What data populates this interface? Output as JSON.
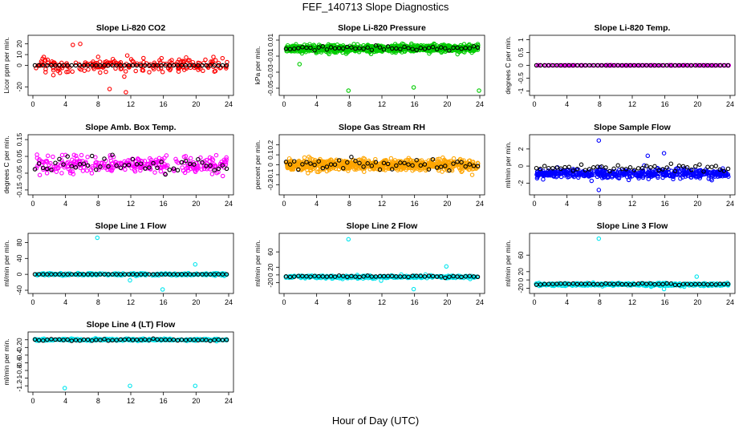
{
  "figure": {
    "title": "FEF_140713  Slope Diagnostics",
    "xlabel": "Hour of Day (UTC)"
  },
  "chart_data": [
    {
      "type": "scatter",
      "title": "Slope Li-820 CO2",
      "ylabel": "Licor ppm per min.",
      "xlim": [
        0,
        24
      ],
      "ylim": [
        -25,
        25
      ],
      "yticks": [
        -20,
        0,
        10,
        20
      ],
      "xticks": [
        0,
        4,
        8,
        12,
        16,
        20,
        24
      ],
      "color": "#ff0000",
      "series": [
        {
          "kind": "noise",
          "count": 220,
          "xrange": [
            0.3,
            23.8
          ],
          "center": 0,
          "spread": 8,
          "outliers": [
            [
              4.9,
              19
            ],
            [
              5.8,
              20
            ],
            [
              9.4,
              -22
            ],
            [
              11.4,
              -25
            ]
          ]
        },
        {
          "kind": "reference",
          "count": 48,
          "value": 0
        }
      ]
    },
    {
      "type": "scatter",
      "title": "Slope Li-820 Pressure",
      "ylabel": "kPa per min.",
      "xlim": [
        0,
        24
      ],
      "ylim": [
        -0.055,
        0.012
      ],
      "yticks": [
        -0.05,
        -0.03,
        -0.01,
        0.01
      ],
      "xticks": [
        0,
        4,
        8,
        12,
        16,
        20,
        24
      ],
      "color": "#00cc00",
      "series": [
        {
          "kind": "noise",
          "count": 900,
          "xrange": [
            0.3,
            23.8
          ],
          "center": -0.0005,
          "spread": 0.005,
          "outliers": [
            [
              7.9,
              -0.053
            ],
            [
              15.9,
              -0.049
            ],
            [
              23.9,
              -0.053
            ],
            [
              1.9,
              -0.02
            ]
          ]
        },
        {
          "kind": "reference",
          "count": 48,
          "value": 0.0,
          "spread": 0.003
        }
      ]
    },
    {
      "type": "scatter",
      "title": "Slope Li-820 Temp.",
      "ylabel": "degrees C per min.",
      "xlim": [
        0,
        24
      ],
      "ylim": [
        -1.05,
        1.05
      ],
      "yticks": [
        -1.0,
        -0.5,
        0.0,
        0.5,
        1.0
      ],
      "xticks": [
        0,
        4,
        8,
        12,
        16,
        20,
        24
      ],
      "color": "#ff00ff",
      "series": [
        {
          "kind": "noise",
          "count": 150,
          "xrange": [
            0.2,
            23.9
          ],
          "center": 0,
          "spread": 0.004,
          "outliers": []
        },
        {
          "kind": "reference",
          "count": 48,
          "value": 0
        }
      ]
    },
    {
      "type": "scatter",
      "title": "Slope Amb. Box Temp.",
      "ylabel": "degrees C per min.",
      "xlim": [
        0,
        24
      ],
      "ylim": [
        -0.16,
        0.16
      ],
      "yticks": [
        -0.15,
        -0.05,
        0.05,
        0.15
      ],
      "xticks": [
        0,
        4,
        8,
        12,
        16,
        20,
        24
      ],
      "color": "#ff00ff",
      "series": [
        {
          "kind": "noise",
          "count": 300,
          "xrange": [
            0.3,
            23.8
          ],
          "center": 0.0,
          "spread": 0.055,
          "outliers": []
        },
        {
          "kind": "reference",
          "count": 48,
          "value": 0.0,
          "spread": 0.045
        }
      ]
    },
    {
      "type": "scatter",
      "title": "Slope Gas Stream RH",
      "ylabel": "percent per min.",
      "xlim": [
        0,
        24
      ],
      "ylim": [
        -0.27,
        0.27
      ],
      "yticks": [
        -0.2,
        -0.1,
        0.0,
        0.1,
        0.2
      ],
      "xticks": [
        0,
        4,
        8,
        12,
        16,
        20,
        24
      ],
      "color": "#ffa500",
      "series": [
        {
          "kind": "noise",
          "count": 700,
          "xrange": [
            0.3,
            23.8
          ],
          "center": 0.0,
          "spread": 0.06,
          "outliers": []
        },
        {
          "kind": "reference",
          "count": 48,
          "value": 0.0,
          "spread": 0.07
        }
      ]
    },
    {
      "type": "scatter",
      "title": "Slope Sample Flow",
      "ylabel": "ml/min per min.",
      "xlim": [
        0,
        24
      ],
      "ylim": [
        -3.0,
        3.3
      ],
      "yticks": [
        -2,
        0,
        2
      ],
      "xticks": [
        0,
        4,
        8,
        12,
        16,
        20,
        24
      ],
      "color": "#0000ff",
      "series": [
        {
          "kind": "noise",
          "count": 500,
          "xrange": [
            0.2,
            23.8
          ],
          "center": -0.9,
          "spread": 0.55,
          "outliers": [
            [
              7.9,
              3.0
            ],
            [
              15.9,
              1.5
            ],
            [
              7.9,
              -2.8
            ],
            [
              13.9,
              1.2
            ]
          ]
        },
        {
          "kind": "reference",
          "count": 48,
          "value": -0.2,
          "spread": 0.45
        }
      ]
    },
    {
      "type": "scatter",
      "title": "Slope Line 1 Flow",
      "ylabel": "ml/min per min.",
      "xlim": [
        0,
        24
      ],
      "ylim": [
        -40,
        95
      ],
      "yticks": [
        -40,
        0,
        40,
        80
      ],
      "xticks": [
        0,
        4,
        8,
        12,
        16,
        20,
        24
      ],
      "color": "#00e5ee",
      "series": [
        {
          "kind": "noise",
          "count": 350,
          "xrange": [
            0.2,
            23.8
          ],
          "center": 0,
          "spread": 3,
          "outliers": [
            [
              7.9,
              92
            ],
            [
              19.9,
              25
            ],
            [
              11.9,
              -15
            ],
            [
              15.9,
              -38
            ]
          ]
        },
        {
          "kind": "reference",
          "count": 48,
          "value": 0
        }
      ]
    },
    {
      "type": "scatter",
      "title": "Slope Line 2 Flow",
      "ylabel": "ml/min per min.",
      "xlim": [
        0,
        24
      ],
      "ylim": [
        -40,
        100
      ],
      "yticks": [
        -20,
        0,
        20,
        60
      ],
      "xticks": [
        0,
        4,
        8,
        12,
        16,
        20,
        24
      ],
      "color": "#00e5ee",
      "series": [
        {
          "kind": "noise",
          "count": 350,
          "xrange": [
            0.2,
            23.8
          ],
          "center": -5,
          "spread": 4,
          "outliers": [
            [
              7.9,
              93
            ],
            [
              19.9,
              22
            ],
            [
              11.9,
              -15
            ],
            [
              15.9,
              -37
            ]
          ]
        },
        {
          "kind": "reference",
          "count": 48,
          "value": -4,
          "spread": 2
        }
      ]
    },
    {
      "type": "scatter",
      "title": "Slope Line 3 Flow",
      "ylabel": "ml/min per min.",
      "xlim": [
        0,
        24
      ],
      "ylim": [
        -25,
        105
      ],
      "yticks": [
        -20,
        0,
        20,
        60
      ],
      "xticks": [
        0,
        4,
        8,
        12,
        16,
        20,
        24
      ],
      "color": "#00e5ee",
      "series": [
        {
          "kind": "noise",
          "count": 450,
          "xrange": [
            0.2,
            23.8
          ],
          "center": -11,
          "spread": 4,
          "outliers": [
            [
              7.9,
              100
            ],
            [
              19.9,
              8
            ],
            [
              15.9,
              -22
            ]
          ]
        },
        {
          "kind": "reference",
          "count": 48,
          "value": -10,
          "spread": 2
        }
      ]
    },
    {
      "type": "scatter",
      "title": "Slope Line 4 (LT) Flow",
      "ylabel": "ml/min per min.",
      "xlim": [
        0,
        24
      ],
      "ylim": [
        -1.28,
        0.12
      ],
      "yticks": [
        -1.2,
        -1.0,
        -0.8,
        -0.6,
        -0.4,
        -0.2,
        0.0
      ],
      "xticks": [
        0,
        4,
        8,
        12,
        16,
        20,
        24
      ],
      "color": "#00e5ee",
      "series": [
        {
          "kind": "noise",
          "count": 350,
          "xrange": [
            0.2,
            23.8
          ],
          "center": 0.0,
          "spread": 0.03,
          "outliers": [
            [
              3.9,
              -1.26
            ],
            [
              11.9,
              -1.2
            ],
            [
              19.9,
              -1.2
            ]
          ]
        },
        {
          "kind": "reference",
          "count": 48,
          "value": 0.0,
          "spread": 0.02
        }
      ]
    }
  ]
}
